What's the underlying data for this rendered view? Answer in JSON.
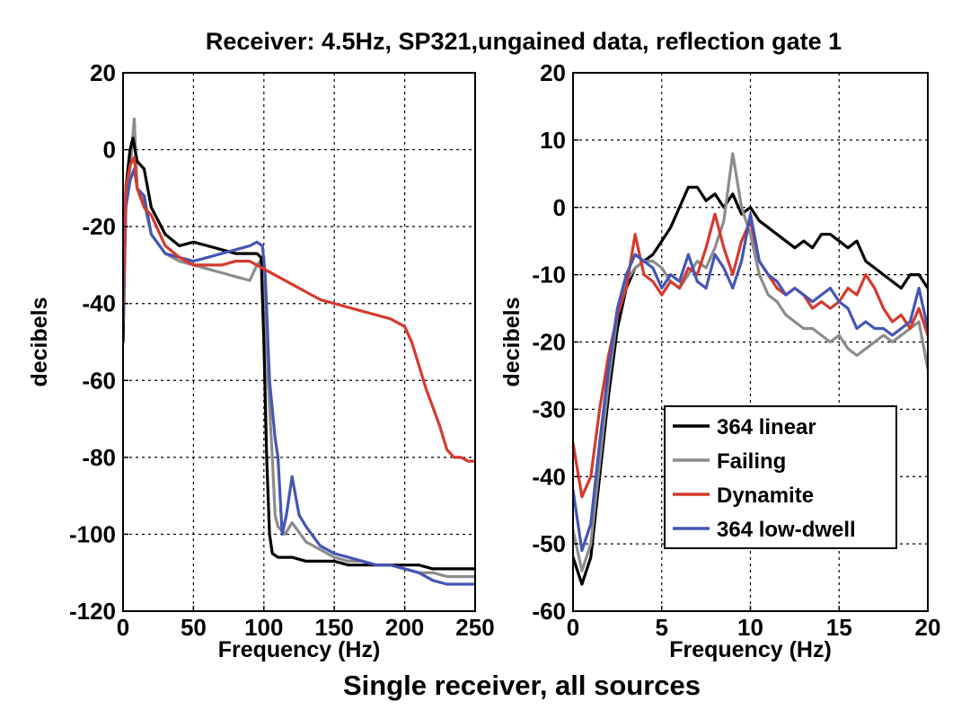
{
  "figure": {
    "title": "Receiver: 4.5Hz, SP321,ungained data, reflection gate 1",
    "caption": "Single receiver, all sources"
  },
  "chart_data": [
    {
      "type": "line",
      "id": "broadband",
      "title": "",
      "xlabel": "Frequency (Hz)",
      "ylabel": "decibels",
      "xlim": [
        0,
        250
      ],
      "ylim": [
        -120,
        20
      ],
      "xticks": [
        0,
        50,
        100,
        150,
        200,
        250
      ],
      "xtick_labels": [
        "0",
        "50",
        "100",
        "150",
        "200",
        "250"
      ],
      "yticks": [
        -120,
        -100,
        -80,
        -60,
        -40,
        -20,
        0,
        20
      ],
      "ytick_labels": [
        "-120",
        "-100",
        "-80",
        "-60",
        "-40",
        "-20",
        "0",
        "20"
      ],
      "grid": true,
      "series": [
        {
          "name": "Failing",
          "color": "#8c8c8c",
          "x": [
            0,
            2,
            5,
            8,
            10,
            15,
            20,
            30,
            40,
            50,
            60,
            70,
            80,
            90,
            95,
            100,
            103,
            106,
            108,
            110,
            115,
            120,
            130,
            140,
            150,
            160,
            170,
            180,
            190,
            200,
            210,
            220,
            230,
            240,
            250
          ],
          "y": [
            -50,
            -15,
            -5,
            8,
            -10,
            -14,
            -22,
            -27,
            -29,
            -30,
            -31,
            -32,
            -33,
            -34,
            -30,
            -28,
            -60,
            -80,
            -95,
            -98,
            -100,
            -97,
            -102,
            -104,
            -106,
            -107,
            -107,
            -108,
            -108,
            -109,
            -110,
            -110,
            -111,
            -111,
            -111
          ]
        },
        {
          "name": "364 linear",
          "color": "#000000",
          "x": [
            0,
            2,
            5,
            7,
            10,
            15,
            20,
            30,
            40,
            50,
            60,
            70,
            80,
            90,
            95,
            98,
            100,
            102,
            104,
            106,
            110,
            120,
            130,
            140,
            150,
            160,
            170,
            180,
            190,
            200,
            210,
            220,
            230,
            240,
            250
          ],
          "y": [
            -50,
            -10,
            0,
            3,
            -3,
            -5,
            -15,
            -22,
            -25,
            -24,
            -25,
            -26,
            -27,
            -27,
            -27,
            -28,
            -50,
            -80,
            -100,
            -105,
            -106,
            -106,
            -107,
            -107,
            -107,
            -108,
            -108,
            -108,
            -108,
            -108,
            -108,
            -109,
            -109,
            -109,
            -109
          ]
        },
        {
          "name": "364 low-dwell",
          "color": "#4456b4",
          "x": [
            0,
            2,
            5,
            8,
            10,
            15,
            20,
            30,
            40,
            50,
            60,
            70,
            80,
            90,
            95,
            99,
            101,
            104,
            108,
            110,
            113,
            116,
            120,
            125,
            130,
            140,
            150,
            160,
            170,
            180,
            190,
            200,
            210,
            220,
            230,
            240,
            250
          ],
          "y": [
            -45,
            -15,
            -8,
            -5,
            -10,
            -12,
            -22,
            -27,
            -28,
            -29,
            -28,
            -27,
            -26,
            -25,
            -24,
            -25,
            -33,
            -60,
            -75,
            -80,
            -100,
            -95,
            -85,
            -95,
            -98,
            -103,
            -105,
            -106,
            -107,
            -108,
            -108,
            -109,
            -110,
            -112,
            -113,
            -113,
            -113
          ]
        },
        {
          "name": "Dynamite",
          "color": "#d43a2c",
          "x": [
            0,
            2,
            5,
            8,
            10,
            15,
            20,
            30,
            40,
            50,
            60,
            70,
            80,
            90,
            100,
            110,
            120,
            130,
            140,
            150,
            160,
            170,
            180,
            190,
            200,
            205,
            210,
            215,
            220,
            225,
            230,
            235,
            240,
            245,
            250
          ],
          "y": [
            -40,
            -10,
            -4,
            -2,
            -10,
            -15,
            -17,
            -25,
            -28,
            -30,
            -30,
            -30,
            -29,
            -29,
            -31,
            -33,
            -35,
            -37,
            -39,
            -40,
            -41,
            -42,
            -43,
            -44,
            -46,
            -50,
            -56,
            -62,
            -67,
            -72,
            -78,
            -80,
            -80,
            -81,
            -81
          ]
        }
      ]
    },
    {
      "type": "line",
      "id": "lowband",
      "title": "",
      "xlabel": "Frequency (Hz)",
      "ylabel": "decibels",
      "xlim": [
        0,
        20
      ],
      "ylim": [
        -60,
        20
      ],
      "xticks": [
        0,
        5,
        10,
        15,
        20
      ],
      "xtick_labels": [
        "0",
        "5",
        "10",
        "15",
        "20"
      ],
      "yticks": [
        -60,
        -50,
        -40,
        -30,
        -20,
        -10,
        0,
        10,
        20
      ],
      "ytick_labels": [
        "-60",
        "-50",
        "-40",
        "-30",
        "-20",
        "-10",
        "0",
        "10",
        "20"
      ],
      "grid": true,
      "legend": {
        "placement": "lower-right",
        "entries": [
          "364 linear",
          "Failing",
          "Dynamite",
          "364 low-dwell"
        ]
      },
      "series": [
        {
          "name": "364 linear",
          "color": "#000000",
          "x": [
            0,
            0.5,
            1,
            1.5,
            2,
            2.5,
            3,
            3.5,
            4,
            4.5,
            5,
            5.5,
            6,
            6.5,
            7,
            7.5,
            8,
            8.5,
            9,
            9.5,
            10,
            10.5,
            11,
            11.5,
            12,
            12.5,
            13,
            13.5,
            14,
            14.5,
            15,
            15.5,
            16,
            16.5,
            17,
            17.5,
            18,
            18.5,
            19,
            19.5,
            20
          ],
          "y": [
            -52,
            -56,
            -52,
            -40,
            -28,
            -18,
            -12,
            -9,
            -8,
            -7,
            -5,
            -3,
            0,
            3,
            3,
            1,
            2,
            0,
            2,
            -1,
            0,
            -2,
            -3,
            -4,
            -5,
            -6,
            -5,
            -6,
            -4,
            -4,
            -5,
            -6,
            -5,
            -8,
            -9,
            -10,
            -11,
            -12,
            -10,
            -10,
            -12
          ]
        },
        {
          "name": "Failing",
          "color": "#8c8c8c",
          "x": [
            0,
            0.5,
            1,
            1.5,
            2,
            2.5,
            3,
            3.5,
            4,
            4.5,
            5,
            5.5,
            6,
            6.5,
            7,
            7.5,
            8,
            8.5,
            9,
            9.5,
            10,
            10.5,
            11,
            11.5,
            12,
            12.5,
            13,
            13.5,
            14,
            14.5,
            15,
            15.5,
            16,
            16.5,
            17,
            17.5,
            18,
            18.5,
            19,
            19.5,
            20
          ],
          "y": [
            -48,
            -54,
            -50,
            -38,
            -26,
            -16,
            -11,
            -9,
            -8,
            -8,
            -9,
            -11,
            -12,
            -10,
            -8,
            -9,
            -6,
            -2,
            8,
            0,
            -4,
            -10,
            -13,
            -14,
            -16,
            -17,
            -18,
            -18,
            -19,
            -20,
            -19,
            -21,
            -22,
            -21,
            -20,
            -19,
            -20,
            -19,
            -18,
            -17,
            -24
          ]
        },
        {
          "name": "Dynamite",
          "color": "#d43a2c",
          "x": [
            0,
            0.5,
            1,
            1.5,
            2,
            2.5,
            3,
            3.5,
            4,
            4.5,
            5,
            5.5,
            6,
            6.5,
            7,
            7.5,
            8,
            8.5,
            9,
            9.5,
            10,
            10.5,
            11,
            11.5,
            12,
            12.5,
            13,
            13.5,
            14,
            14.5,
            15,
            15.5,
            16,
            16.5,
            17,
            17.5,
            18,
            18.5,
            19,
            19.5,
            20
          ],
          "y": [
            -35,
            -43,
            -40,
            -30,
            -22,
            -16,
            -12,
            -4,
            -10,
            -11,
            -13,
            -11,
            -12,
            -9,
            -10,
            -6,
            -1,
            -6,
            -10,
            -5,
            -2,
            -8,
            -10,
            -12,
            -13,
            -12,
            -13,
            -15,
            -14,
            -15,
            -14,
            -12,
            -13,
            -10,
            -12,
            -15,
            -17,
            -16,
            -18,
            -15,
            -19
          ]
        },
        {
          "name": "364 low-dwell",
          "color": "#4456b4",
          "x": [
            0,
            0.5,
            1,
            1.5,
            2,
            2.5,
            3,
            3.5,
            4,
            4.5,
            5,
            5.5,
            6,
            6.5,
            7,
            7.5,
            8,
            8.5,
            9,
            9.5,
            10,
            10.5,
            11,
            11.5,
            12,
            12.5,
            13,
            13.5,
            14,
            14.5,
            15,
            15.5,
            16,
            16.5,
            17,
            17.5,
            18,
            18.5,
            19,
            19.5,
            20
          ],
          "y": [
            -42,
            -51,
            -47,
            -35,
            -24,
            -15,
            -10,
            -7,
            -8,
            -9,
            -12,
            -10,
            -11,
            -7,
            -11,
            -12,
            -7,
            -9,
            -12,
            -8,
            -1,
            -8,
            -10,
            -11,
            -13,
            -12,
            -13,
            -14,
            -13,
            -12,
            -14,
            -15,
            -18,
            -17,
            -18,
            -18,
            -19,
            -18,
            -17,
            -12,
            -18
          ]
        }
      ]
    }
  ]
}
